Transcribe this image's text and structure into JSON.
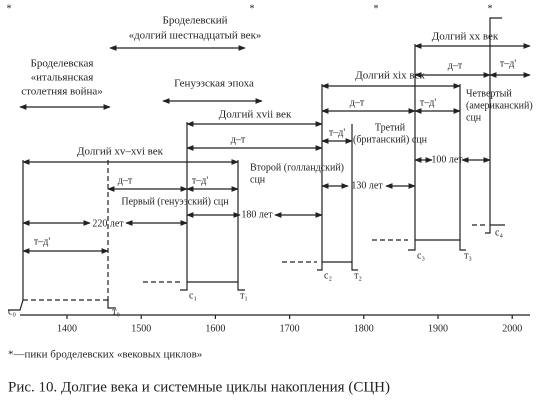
{
  "peak_marker": "*",
  "braudel_century": {
    "line1": "Броделевский",
    "line2": "«долгий шестнадцатый век»"
  },
  "braudel_war": {
    "line1": "Броделевская",
    "line2": "«итальянская",
    "line3": "столетняя война»"
  },
  "genoese_age": "Генуэзская эпоха",
  "long_centuries": {
    "c15_16": "Долгий xv–xvi век",
    "c17": "Долгий xvii век",
    "c19": "Долгий xix век",
    "c20": "Долгий xx век"
  },
  "phases": {
    "mc": "д–т",
    "cm": "т–д'"
  },
  "cycles": {
    "first": "Первый (генуэзский) сцн",
    "second": {
      "line1": "Второй (голландский)",
      "line2": "сцн"
    },
    "third": {
      "line1": "Третий",
      "line2": "(британский) сцн"
    },
    "fourth": {
      "line1": "Четвертый",
      "line2": "(американский)",
      "line3": "сцн"
    }
  },
  "durations": {
    "d220": "220 лет",
    "d180": "180 лет",
    "d130": "130 лет",
    "d100": "100 лет"
  },
  "points": {
    "c0": "c₀",
    "t0": "т₀",
    "c1": "c₁",
    "t1": "т₁",
    "c2": "c₂",
    "t2": "т₂",
    "c3": "c₃",
    "t3": "т₃",
    "c4": "c₄"
  },
  "axis": {
    "ticks": [
      "1400",
      "1500",
      "1600",
      "1700",
      "1800",
      "1900",
      "2000"
    ]
  },
  "footnote": "*—пики броделевских «вековых циклов»",
  "caption": "Рис. 10. Долгие века и системные циклы накопления (СЦН)"
}
